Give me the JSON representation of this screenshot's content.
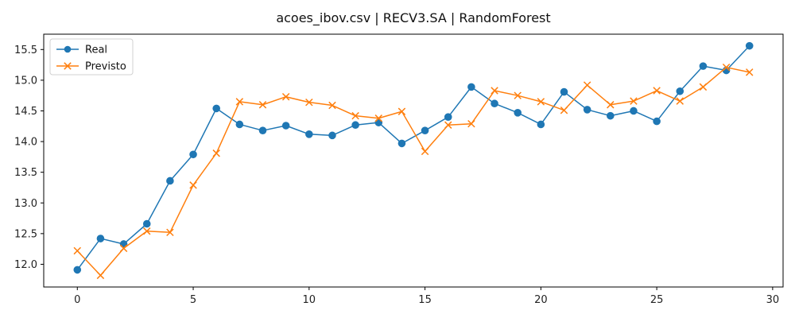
{
  "chart_data": {
    "type": "line",
    "title": "acoes_ibov.csv | RECV3.SA | RandomForest",
    "xlabel": "",
    "ylabel": "",
    "xlim": [
      -1.45,
      30.45
    ],
    "ylim": [
      11.63,
      15.75
    ],
    "xticks": [
      0,
      5,
      10,
      15,
      20,
      25,
      30
    ],
    "yticks": [
      12.0,
      12.5,
      13.0,
      13.5,
      14.0,
      14.5,
      15.0,
      15.5
    ],
    "x": [
      0,
      1,
      2,
      3,
      4,
      5,
      6,
      7,
      8,
      9,
      10,
      11,
      12,
      13,
      14,
      15,
      16,
      17,
      18,
      19,
      20,
      21,
      22,
      23,
      24,
      25,
      26,
      27,
      28,
      29
    ],
    "legend_position": "top-left",
    "grid": false,
    "series": [
      {
        "name": "Real",
        "color": "#1f77b4",
        "marker": "circle",
        "values": [
          11.91,
          12.42,
          12.33,
          12.66,
          13.36,
          13.79,
          14.54,
          14.28,
          14.18,
          14.26,
          14.12,
          14.1,
          14.27,
          14.31,
          13.97,
          14.18,
          14.4,
          14.89,
          14.62,
          14.47,
          14.28,
          14.81,
          14.52,
          14.42,
          14.5,
          14.33,
          14.82,
          15.23,
          15.16,
          15.56
        ]
      },
      {
        "name": "Previsto",
        "color": "#ff7f0e",
        "marker": "x",
        "values": [
          12.22,
          11.82,
          12.26,
          12.54,
          12.52,
          13.29,
          13.81,
          14.65,
          14.6,
          14.73,
          14.64,
          14.59,
          14.42,
          14.38,
          14.49,
          13.84,
          14.27,
          14.29,
          14.83,
          14.75,
          14.65,
          14.51,
          14.92,
          14.6,
          14.66,
          14.83,
          14.66,
          14.89,
          15.21,
          15.13
        ]
      }
    ]
  }
}
